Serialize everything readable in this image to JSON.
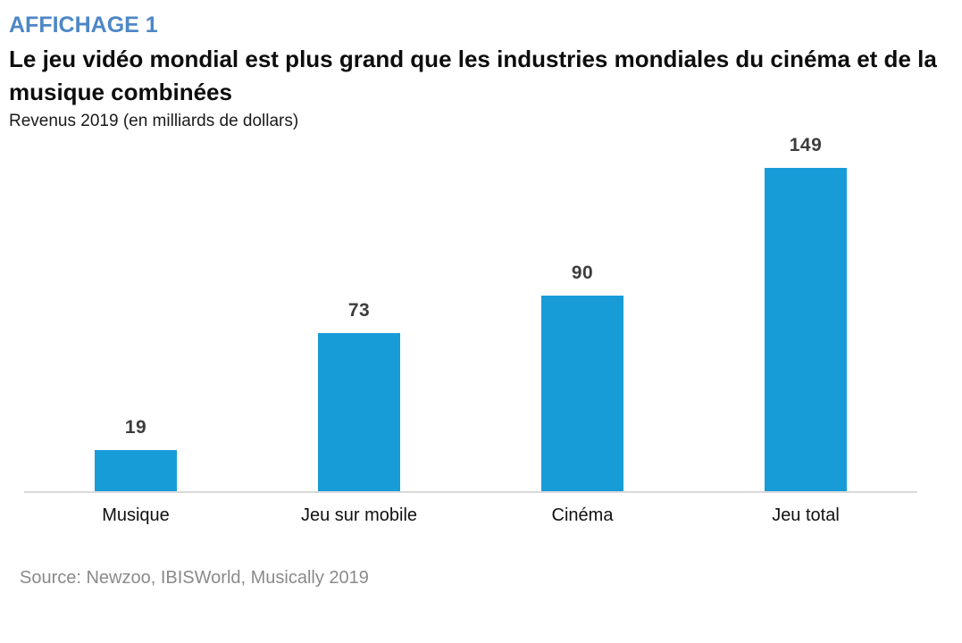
{
  "page": {
    "eyebrow": "AFFICHAGE 1",
    "title": "Le jeu vidéo mondial est plus grand que les industries mondiales du cinéma et de la musique combinées",
    "subtitle": "Revenus 2019 (en milliards de dollars)",
    "source": "Source: Newzoo, IBISWorld, Musically 2019"
  },
  "colors": {
    "bar": "#189cd8",
    "eyebrow": "#4e87c6",
    "axis_line": "#d9d9d9",
    "source_text": "#8a8a8a",
    "value_labels": "#3d3d3d"
  },
  "chart_data": {
    "type": "bar",
    "categories": [
      "Musique",
      "Jeu sur mobile",
      "Cinéma",
      "Jeu total"
    ],
    "values": [
      19,
      73,
      90,
      149
    ],
    "title": "Le jeu vidéo mondial est plus grand que les industries mondiales du cinéma et de la musique combinées",
    "subtitle": "Revenus 2019 (en milliards de dollars)",
    "xlabel": "",
    "ylabel": "Revenus 2019 (en milliards de dollars)",
    "ylim": [
      0,
      160
    ],
    "bar_color": "#189cd8",
    "data_labels": true,
    "grid": false,
    "legend": false,
    "source": "Source: Newzoo, IBISWorld, Musically 2019"
  }
}
